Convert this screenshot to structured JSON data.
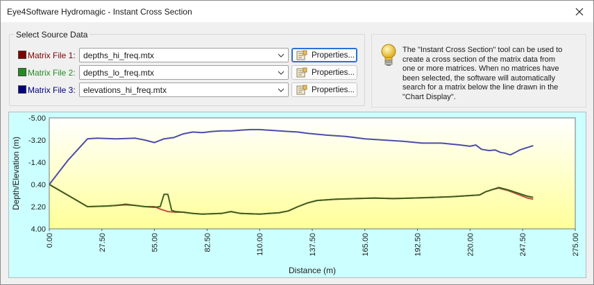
{
  "window": {
    "title": "Eye4Software Hydromagic - Instant Cross Section",
    "close_glyph": "✕"
  },
  "source": {
    "group_title": "Select Source Data",
    "files": [
      {
        "label": "Matrix File 1:",
        "value": "depths_hi_freq.mtx",
        "color": "#800000"
      },
      {
        "label": "Matrix File 2:",
        "value": "depths_lo_freq.mtx",
        "color": "#228b22"
      },
      {
        "label": "Matrix File 3:",
        "value": "elevations_hi_freq.mtx",
        "color": "#000080"
      }
    ],
    "properties_label": "Properties..."
  },
  "info": {
    "icon": "lightbulb-icon",
    "lines": [
      "The \"Instant Cross Section\" tool can be used to",
      "create a cross section of the matrix data from",
      "one or more matrices. When no matrices have",
      "been selected, the software will automatically",
      "search for a matrix below the line drawn in the",
      "\"Chart Display\"."
    ]
  },
  "chart_data": {
    "type": "line",
    "xlabel": "Distance (m)",
    "ylabel": "Depth/Elevation (m)",
    "xlim": [
      0,
      275
    ],
    "ylim": [
      -5.0,
      4.0
    ],
    "y_inverted": true,
    "xticks": [
      "0.00",
      "27.50",
      "55.00",
      "82.50",
      "110.00",
      "137.50",
      "165.00",
      "192.50",
      "220.00",
      "247.50",
      "275.00"
    ],
    "yticks": [
      "-5.00",
      "-3.20",
      "-1.40",
      "0.40",
      "2.20",
      "4.00"
    ],
    "background_top": "#ffffff",
    "background_bottom": "#ffff99",
    "series": [
      {
        "color": "#4b4ba8",
        "points": [
          [
            0,
            0.4
          ],
          [
            10,
            -1.6
          ],
          [
            20,
            -3.3
          ],
          [
            25,
            -3.35
          ],
          [
            35,
            -3.3
          ],
          [
            45,
            -3.35
          ],
          [
            50,
            -3.2
          ],
          [
            55,
            -3.0
          ],
          [
            60,
            -3.3
          ],
          [
            65,
            -3.4
          ],
          [
            70,
            -3.7
          ],
          [
            75,
            -3.85
          ],
          [
            80,
            -3.8
          ],
          [
            85,
            -3.9
          ],
          [
            90,
            -3.95
          ],
          [
            95,
            -3.95
          ],
          [
            100,
            -4.0
          ],
          [
            105,
            -4.05
          ],
          [
            110,
            -4.05
          ],
          [
            115,
            -4.0
          ],
          [
            125,
            -3.9
          ],
          [
            130,
            -3.85
          ],
          [
            135,
            -3.75
          ],
          [
            145,
            -3.6
          ],
          [
            155,
            -3.5
          ],
          [
            165,
            -3.3
          ],
          [
            175,
            -3.2
          ],
          [
            185,
            -3.1
          ],
          [
            195,
            -2.95
          ],
          [
            205,
            -2.95
          ],
          [
            215,
            -2.8
          ],
          [
            220,
            -2.7
          ],
          [
            223,
            -2.8
          ],
          [
            226,
            -2.45
          ],
          [
            230,
            -2.35
          ],
          [
            233,
            -2.4
          ],
          [
            236,
            -2.2
          ],
          [
            238,
            -2.15
          ],
          [
            241,
            -2.0
          ],
          [
            243,
            -2.15
          ],
          [
            246,
            -2.4
          ],
          [
            249,
            -2.55
          ],
          [
            252,
            -2.7
          ],
          [
            253,
            -2.75
          ]
        ]
      },
      {
        "color": "#c05040",
        "points": [
          [
            0,
            0.4
          ],
          [
            10,
            1.3
          ],
          [
            20,
            2.2
          ],
          [
            30,
            2.15
          ],
          [
            35,
            2.1
          ],
          [
            40,
            2.0
          ],
          [
            45,
            2.1
          ],
          [
            50,
            2.2
          ],
          [
            55,
            2.2
          ],
          [
            58,
            2.4
          ],
          [
            62,
            2.6
          ],
          [
            66,
            2.65
          ],
          [
            70,
            2.65
          ],
          [
            75,
            2.75
          ],
          [
            80,
            2.8
          ],
          [
            90,
            2.75
          ],
          [
            95,
            2.6
          ],
          [
            100,
            2.75
          ],
          [
            110,
            2.8
          ],
          [
            115,
            2.75
          ],
          [
            120,
            2.7
          ],
          [
            125,
            2.55
          ],
          [
            130,
            2.2
          ],
          [
            135,
            1.9
          ],
          [
            140,
            1.7
          ],
          [
            150,
            1.6
          ],
          [
            160,
            1.55
          ],
          [
            170,
            1.5
          ],
          [
            180,
            1.55
          ],
          [
            190,
            1.5
          ],
          [
            200,
            1.45
          ],
          [
            210,
            1.4
          ],
          [
            220,
            1.3
          ],
          [
            225,
            1.25
          ],
          [
            228,
            1.0
          ],
          [
            232,
            0.8
          ],
          [
            235,
            0.7
          ],
          [
            240,
            0.9
          ],
          [
            245,
            1.2
          ],
          [
            250,
            1.5
          ],
          [
            253,
            1.6
          ]
        ]
      },
      {
        "color": "#3d5f1e",
        "points": [
          [
            0,
            0.4
          ],
          [
            10,
            1.3
          ],
          [
            20,
            2.2
          ],
          [
            30,
            2.15
          ],
          [
            35,
            2.1
          ],
          [
            40,
            2.05
          ],
          [
            45,
            2.1
          ],
          [
            50,
            2.2
          ],
          [
            55,
            2.25
          ],
          [
            58,
            2.2
          ],
          [
            60,
            1.2
          ],
          [
            62,
            1.2
          ],
          [
            64,
            2.5
          ],
          [
            66,
            2.6
          ],
          [
            70,
            2.65
          ],
          [
            75,
            2.75
          ],
          [
            80,
            2.8
          ],
          [
            90,
            2.75
          ],
          [
            95,
            2.6
          ],
          [
            100,
            2.75
          ],
          [
            110,
            2.8
          ],
          [
            115,
            2.75
          ],
          [
            120,
            2.7
          ],
          [
            125,
            2.55
          ],
          [
            130,
            2.2
          ],
          [
            135,
            1.9
          ],
          [
            140,
            1.7
          ],
          [
            150,
            1.6
          ],
          [
            160,
            1.55
          ],
          [
            170,
            1.5
          ],
          [
            180,
            1.55
          ],
          [
            190,
            1.5
          ],
          [
            200,
            1.45
          ],
          [
            210,
            1.4
          ],
          [
            220,
            1.3
          ],
          [
            225,
            1.25
          ],
          [
            228,
            1.0
          ],
          [
            232,
            0.8
          ],
          [
            235,
            0.65
          ],
          [
            240,
            0.85
          ],
          [
            245,
            1.1
          ],
          [
            250,
            1.35
          ],
          [
            253,
            1.45
          ]
        ]
      }
    ]
  }
}
